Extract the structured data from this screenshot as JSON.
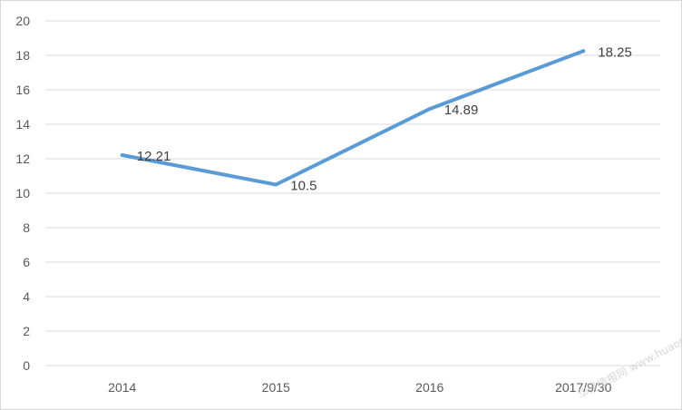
{
  "chart_data": {
    "type": "line",
    "title": "",
    "xlabel": "",
    "ylabel": "",
    "categories": [
      "2014",
      "2015",
      "2016",
      "2017/9/30"
    ],
    "series": [
      {
        "values": [
          12.21,
          10.5,
          14.89,
          18.25
        ],
        "color": "#5b9bd5"
      }
    ],
    "data_labels": [
      "12.21",
      "10.5",
      "14.89",
      "18.25"
    ],
    "ylim": [
      0,
      20
    ],
    "y_ticks": [
      0,
      2,
      4,
      6,
      8,
      10,
      12,
      14,
      16,
      18,
      20
    ],
    "grid": true,
    "legend": "none",
    "watermark": "华经情报网 www.huaon.com"
  }
}
